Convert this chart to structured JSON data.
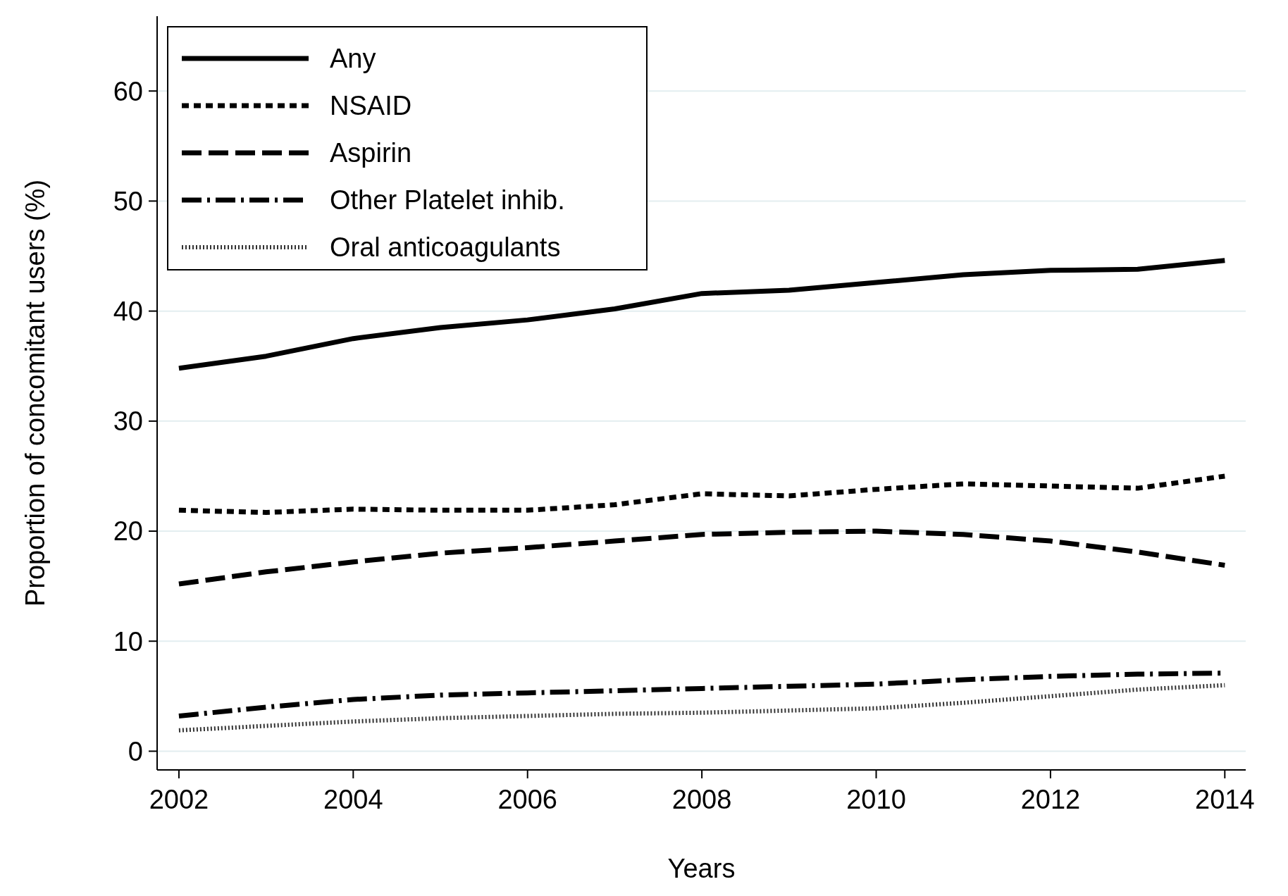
{
  "chart_data": {
    "type": "line",
    "xlabel": "Years",
    "ylabel": "Proportion of concomitant users (%)",
    "x": [
      2002,
      2003,
      2004,
      2005,
      2006,
      2007,
      2008,
      2009,
      2010,
      2011,
      2012,
      2013,
      2014
    ],
    "xlim": [
      2001.75,
      2014.24
    ],
    "xticks": [
      2002,
      2004,
      2006,
      2008,
      2010,
      2012,
      2014
    ],
    "ylim": [
      -1.7,
      66.8
    ],
    "yticks": [
      0,
      10,
      20,
      30,
      40,
      50,
      60
    ],
    "grid": "y",
    "legend": "top left",
    "series": [
      {
        "name": "Any",
        "color": "#000000",
        "line_style": "solid",
        "values": [
          34.8,
          35.9,
          37.5,
          38.5,
          39.2,
          40.2,
          41.6,
          41.9,
          42.6,
          43.3,
          43.7,
          43.8,
          44.6
        ]
      },
      {
        "name": "NSAID",
        "color": "#000000",
        "line_style": "dashed",
        "values": [
          21.9,
          21.7,
          22.0,
          21.9,
          21.9,
          22.4,
          23.4,
          23.2,
          23.8,
          24.3,
          24.1,
          23.9,
          25.0
        ]
      },
      {
        "name": "Aspirin",
        "color": "#000000",
        "line_style": "longdash",
        "values": [
          15.2,
          16.3,
          17.2,
          18.0,
          18.5,
          19.1,
          19.7,
          19.9,
          20.0,
          19.7,
          19.1,
          18.1,
          16.9
        ]
      },
      {
        "name": "Other Platelet inhib.",
        "color": "#000000",
        "line_style": "dashdot",
        "values": [
          3.2,
          4.0,
          4.7,
          5.1,
          5.3,
          5.5,
          5.7,
          5.9,
          6.1,
          6.5,
          6.8,
          7.0,
          7.1
        ]
      },
      {
        "name": "Oral anticoagulants",
        "color": "#333333",
        "line_style": "dotted",
        "values": [
          1.9,
          2.3,
          2.7,
          3.0,
          3.2,
          3.4,
          3.5,
          3.7,
          3.9,
          4.4,
          5.0,
          5.6,
          6.0
        ]
      }
    ]
  }
}
